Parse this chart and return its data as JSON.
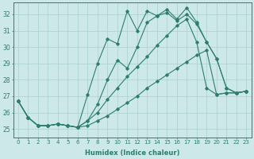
{
  "xlabel": "Humidex (Indice chaleur)",
  "ylabel": "",
  "bg_color": "#cce8e8",
  "grid_color": "#aacfcf",
  "line_color": "#2e7d6e",
  "xlim": [
    -0.5,
    23.5
  ],
  "ylim": [
    24.5,
    32.7
  ],
  "xticks": [
    0,
    1,
    2,
    3,
    4,
    5,
    6,
    7,
    8,
    9,
    10,
    11,
    12,
    13,
    14,
    15,
    16,
    17,
    18,
    19,
    20,
    21,
    22,
    23
  ],
  "yticks": [
    25,
    26,
    27,
    28,
    29,
    30,
    31,
    32
  ],
  "series": [
    [
      26.7,
      25.7,
      25.2,
      25.2,
      25.3,
      25.2,
      25.1,
      25.2,
      25.5,
      25.8,
      26.2,
      26.6,
      27.0,
      27.5,
      27.9,
      28.3,
      28.7,
      29.1,
      29.5,
      29.8,
      27.1,
      27.2,
      27.2,
      27.3
    ],
    [
      26.7,
      25.7,
      25.2,
      25.2,
      25.3,
      25.2,
      25.1,
      25.5,
      26.0,
      26.8,
      27.5,
      28.2,
      28.8,
      29.4,
      30.1,
      30.7,
      31.3,
      31.7,
      30.3,
      27.5,
      27.1,
      27.2,
      27.2,
      27.3
    ],
    [
      26.7,
      25.7,
      25.2,
      25.2,
      25.3,
      25.2,
      25.1,
      25.5,
      26.5,
      28.0,
      29.2,
      28.7,
      30.0,
      31.5,
      31.9,
      32.1,
      31.6,
      32.0,
      31.4,
      30.3,
      29.3,
      27.5,
      27.2,
      27.3
    ],
    [
      26.7,
      25.7,
      25.2,
      25.2,
      25.3,
      25.2,
      25.1,
      27.1,
      29.0,
      30.5,
      30.2,
      32.2,
      31.0,
      32.2,
      31.9,
      32.3,
      31.7,
      32.4,
      31.5,
      30.3,
      29.3,
      27.5,
      27.2,
      27.3
    ]
  ]
}
